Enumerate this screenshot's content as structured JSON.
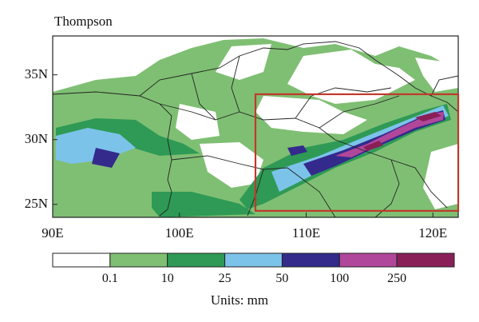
{
  "title": "Thompson",
  "axes": {
    "lat_ticks": [
      {
        "value": 35,
        "label": "35N"
      },
      {
        "value": 30,
        "label": "30N"
      },
      {
        "value": 25,
        "label": "25N"
      }
    ],
    "lon_ticks": [
      {
        "value": 90,
        "label": "90E"
      },
      {
        "value": 100,
        "label": "100E"
      },
      {
        "value": 110,
        "label": "110E"
      },
      {
        "value": 120,
        "label": "120E"
      }
    ],
    "lon_range": [
      90,
      122
    ],
    "lat_range": [
      24,
      38
    ]
  },
  "highlight_box": {
    "lon": [
      106,
      122
    ],
    "lat": [
      24.5,
      33.5
    ],
    "color": "#c0392b"
  },
  "colorbar": {
    "labels": [
      "0.1",
      "10",
      "25",
      "50",
      "100",
      "250"
    ],
    "colors": [
      "#ffffff",
      "#7fbf73",
      "#2e9a55",
      "#7cc3ea",
      "#332a8c",
      "#b0479a",
      "#8a1f58"
    ],
    "units": "Units: mm"
  }
}
